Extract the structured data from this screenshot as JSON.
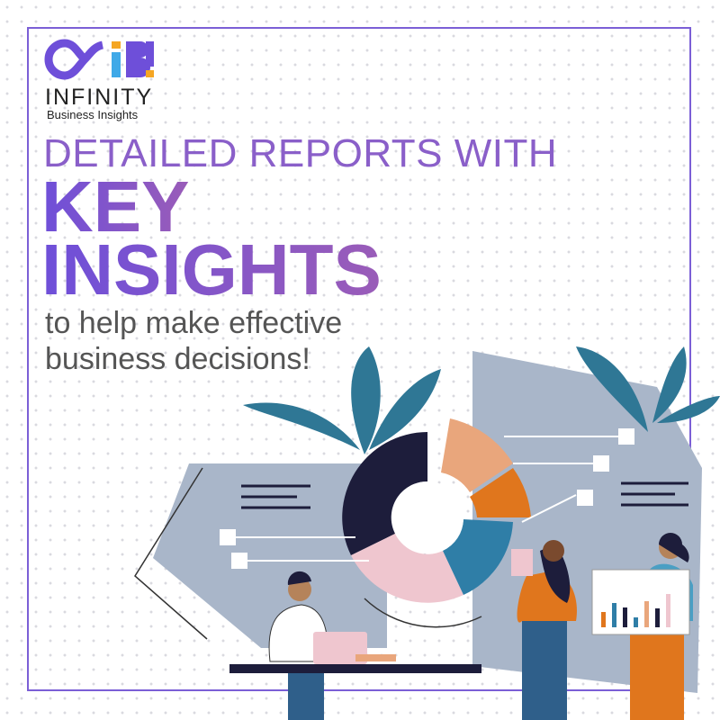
{
  "brand": {
    "logo_letters": "AIB!",
    "name": "INFINITY",
    "tagline": "Business Insights",
    "colors": {
      "purple": "#6e4fd9",
      "blue": "#3fa9e8",
      "orange": "#f5a623"
    }
  },
  "headline": {
    "line1": "DETAILED REPORTS WITH",
    "line2": "KEY",
    "line3": "INSIGHTS"
  },
  "subheadline": {
    "line1": "to help make effective",
    "line2": "business decisions!"
  },
  "colors": {
    "frame": "#7b5fd6",
    "panel": "#a9b6c9",
    "donut_dark": "#1d1d3b",
    "donut_peach": "#e9a67c",
    "donut_orange": "#e0761d",
    "donut_blue": "#2f7ea7",
    "donut_pink": "#efc6cf",
    "leaf": "#2f7795"
  }
}
